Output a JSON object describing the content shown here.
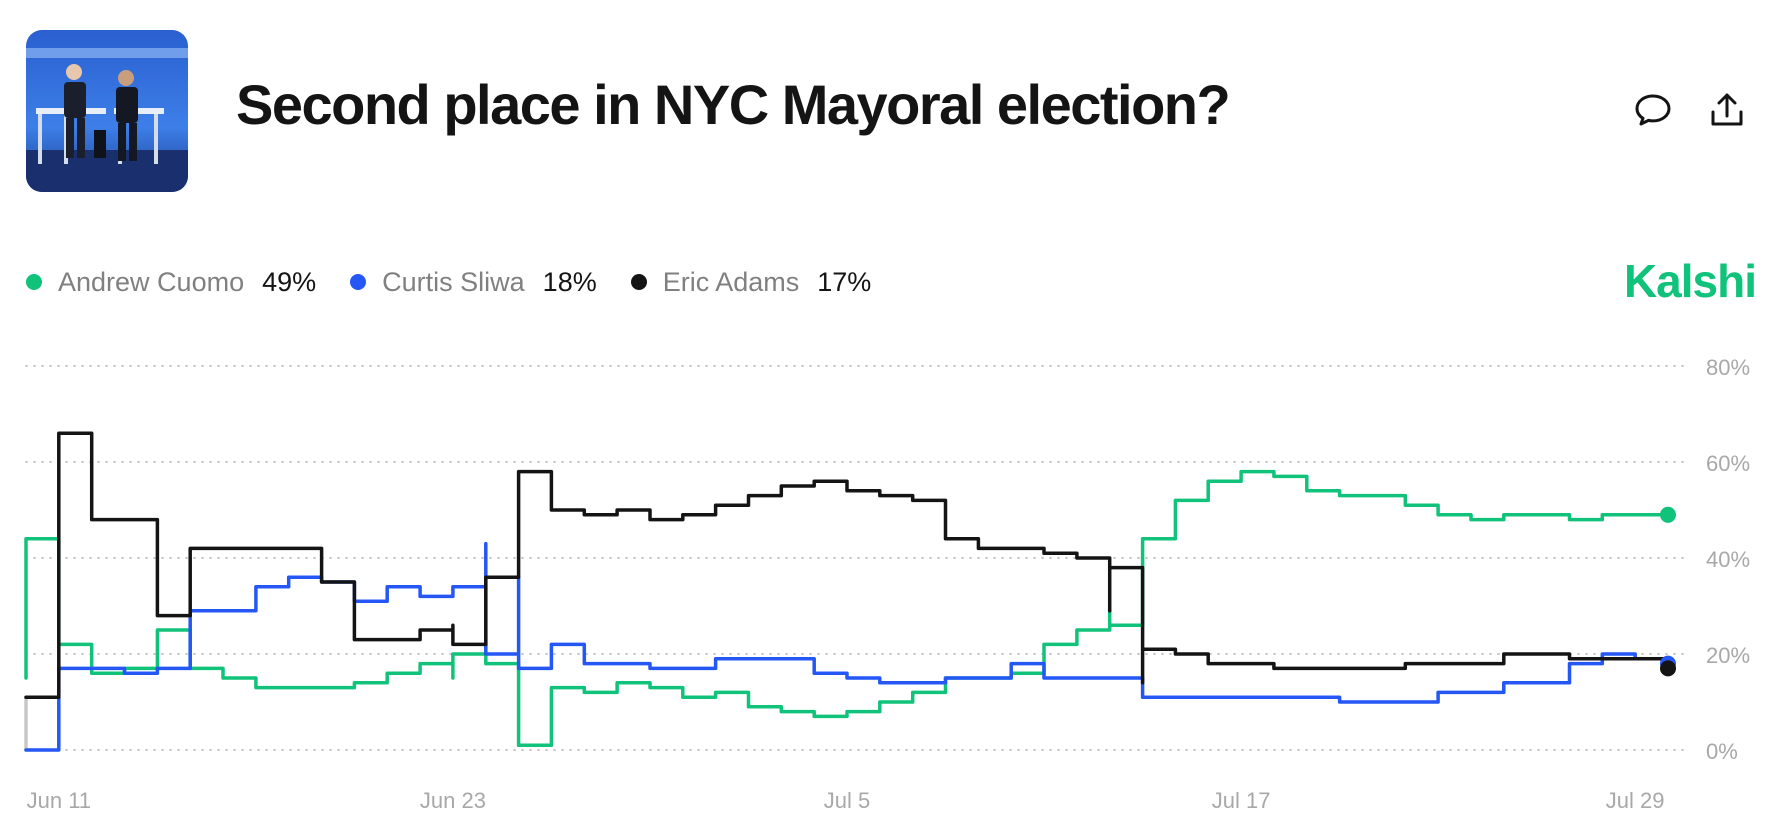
{
  "header": {
    "title": "Second place in NYC Mayoral election?",
    "thumbnail_alt": "debate-stage-photo"
  },
  "actions": {
    "comment_icon": "speech-bubble-icon",
    "share_icon": "share-upload-icon"
  },
  "brand": {
    "name": "Kalshi",
    "color": "#10c27a"
  },
  "legend": [
    {
      "name": "Andrew Cuomo",
      "value": "49%",
      "color": "#10c27a"
    },
    {
      "name": "Curtis Sliwa",
      "value": "18%",
      "color": "#2457f5"
    },
    {
      "name": "Eric Adams",
      "value": "17%",
      "color": "#141414"
    }
  ],
  "chart_data": {
    "type": "line",
    "x_tick_labels": [
      "Jun 11",
      "Jun 23",
      "Jul 5",
      "Jul 17",
      "Jul 29"
    ],
    "x_tick_dates": [
      "2025-06-11",
      "2025-06-23",
      "2025-07-05",
      "2025-07-17",
      "2025-07-29"
    ],
    "x_range": [
      "2025-06-10",
      "2025-07-30"
    ],
    "y_tick_labels": [
      "0%",
      "20%",
      "40%",
      "60%",
      "80%"
    ],
    "ylim": [
      0,
      80
    ],
    "grid": "horizontal dotted",
    "y_axis_side": "right",
    "series": [
      {
        "name": "Andrew Cuomo",
        "color": "#10c27a",
        "points": [
          [
            "2025-06-10",
            15
          ],
          [
            "2025-06-10",
            44
          ],
          [
            "2025-06-11",
            44
          ],
          [
            "2025-06-11",
            28
          ],
          [
            "2025-06-11",
            22
          ],
          [
            "2025-06-12",
            17
          ],
          [
            "2025-06-12",
            16
          ],
          [
            "2025-06-13",
            16
          ],
          [
            "2025-06-13",
            17
          ],
          [
            "2025-06-14",
            17
          ],
          [
            "2025-06-14",
            25
          ],
          [
            "2025-06-15",
            25
          ],
          [
            "2025-06-15",
            17
          ],
          [
            "2025-06-16",
            17
          ],
          [
            "2025-06-16",
            15
          ],
          [
            "2025-06-17",
            15
          ],
          [
            "2025-06-17",
            13
          ],
          [
            "2025-06-19",
            13
          ],
          [
            "2025-06-20",
            14
          ],
          [
            "2025-06-21",
            16
          ],
          [
            "2025-06-22",
            16
          ],
          [
            "2025-06-22",
            18
          ],
          [
            "2025-06-23",
            15
          ],
          [
            "2025-06-23",
            20
          ],
          [
            "2025-06-24",
            23
          ],
          [
            "2025-06-24",
            18
          ],
          [
            "2025-06-25",
            10
          ],
          [
            "2025-06-25",
            1
          ],
          [
            "2025-06-26",
            2
          ],
          [
            "2025-06-26",
            13
          ],
          [
            "2025-06-27",
            12
          ],
          [
            "2025-06-28",
            14
          ],
          [
            "2025-06-29",
            13
          ],
          [
            "2025-06-30",
            11
          ],
          [
            "2025-07-01",
            12
          ],
          [
            "2025-07-02",
            9
          ],
          [
            "2025-07-03",
            8
          ],
          [
            "2025-07-04",
            7
          ],
          [
            "2025-07-05",
            8
          ],
          [
            "2025-07-06",
            10
          ],
          [
            "2025-07-07",
            12
          ],
          [
            "2025-07-08",
            15
          ],
          [
            "2025-07-09",
            15
          ],
          [
            "2025-07-10",
            16
          ],
          [
            "2025-07-11",
            22
          ],
          [
            "2025-07-12",
            25
          ],
          [
            "2025-07-13",
            29
          ],
          [
            "2025-07-13",
            26
          ],
          [
            "2025-07-14",
            44
          ],
          [
            "2025-07-15",
            52
          ],
          [
            "2025-07-16",
            56
          ],
          [
            "2025-07-17",
            58
          ],
          [
            "2025-07-18",
            57
          ],
          [
            "2025-07-19",
            54
          ],
          [
            "2025-07-20",
            53
          ],
          [
            "2025-07-21",
            53
          ],
          [
            "2025-07-22",
            51
          ],
          [
            "2025-07-23",
            49
          ],
          [
            "2025-07-24",
            48
          ],
          [
            "2025-07-25",
            49
          ],
          [
            "2025-07-26",
            49
          ],
          [
            "2025-07-27",
            48
          ],
          [
            "2025-07-28",
            49
          ],
          [
            "2025-07-29",
            49
          ],
          [
            "2025-07-30",
            49
          ]
        ]
      },
      {
        "name": "Curtis Sliwa",
        "color": "#2457f5",
        "points": [
          [
            "2025-06-10",
            0
          ],
          [
            "2025-06-11",
            0
          ],
          [
            "2025-06-11",
            17
          ],
          [
            "2025-06-12",
            17
          ],
          [
            "2025-06-13",
            16
          ],
          [
            "2025-06-14",
            17
          ],
          [
            "2025-06-15",
            17
          ],
          [
            "2025-06-15",
            29
          ],
          [
            "2025-06-17",
            29
          ],
          [
            "2025-06-17",
            34
          ],
          [
            "2025-06-18",
            36
          ],
          [
            "2025-06-19",
            35
          ],
          [
            "2025-06-20",
            35
          ],
          [
            "2025-06-20",
            31
          ],
          [
            "2025-06-21",
            34
          ],
          [
            "2025-06-22",
            32
          ],
          [
            "2025-06-23",
            34
          ],
          [
            "2025-06-24",
            36
          ],
          [
            "2025-06-24",
            43
          ],
          [
            "2025-06-24",
            20
          ],
          [
            "2025-06-25",
            36
          ],
          [
            "2025-06-25",
            17
          ],
          [
            "2025-06-26",
            22
          ],
          [
            "2025-06-27",
            18
          ],
          [
            "2025-06-29",
            17
          ],
          [
            "2025-07-01",
            19
          ],
          [
            "2025-07-03",
            19
          ],
          [
            "2025-07-04",
            16
          ],
          [
            "2025-07-05",
            15
          ],
          [
            "2025-07-06",
            14
          ],
          [
            "2025-07-08",
            15
          ],
          [
            "2025-07-10",
            18
          ],
          [
            "2025-07-11",
            15
          ],
          [
            "2025-07-13",
            15
          ],
          [
            "2025-07-14",
            11
          ],
          [
            "2025-07-16",
            11
          ],
          [
            "2025-07-18",
            11
          ],
          [
            "2025-07-20",
            10
          ],
          [
            "2025-07-22",
            10
          ],
          [
            "2025-07-23",
            12
          ],
          [
            "2025-07-25",
            14
          ],
          [
            "2025-07-27",
            18
          ],
          [
            "2025-07-28",
            20
          ],
          [
            "2025-07-29",
            19
          ],
          [
            "2025-07-30",
            18
          ]
        ]
      },
      {
        "name": "Eric Adams",
        "color": "#141414",
        "points": [
          [
            "2025-06-10",
            11
          ],
          [
            "2025-06-11",
            11
          ],
          [
            "2025-06-11",
            66
          ],
          [
            "2025-06-12",
            66
          ],
          [
            "2025-06-12",
            48
          ],
          [
            "2025-06-13",
            48
          ],
          [
            "2025-06-14",
            41
          ],
          [
            "2025-06-14",
            28
          ],
          [
            "2025-06-15",
            28
          ],
          [
            "2025-06-15",
            42
          ],
          [
            "2025-06-19",
            42
          ],
          [
            "2025-06-19",
            35
          ],
          [
            "2025-06-20",
            29
          ],
          [
            "2025-06-20",
            23
          ],
          [
            "2025-06-21",
            23
          ],
          [
            "2025-06-22",
            25
          ],
          [
            "2025-06-23",
            26
          ],
          [
            "2025-06-23",
            22
          ],
          [
            "2025-06-24",
            30
          ],
          [
            "2025-06-24",
            36
          ],
          [
            "2025-06-25",
            48
          ],
          [
            "2025-06-25",
            58
          ],
          [
            "2025-06-26",
            56
          ],
          [
            "2025-06-26",
            50
          ],
          [
            "2025-06-27",
            49
          ],
          [
            "2025-06-28",
            50
          ],
          [
            "2025-06-29",
            48
          ],
          [
            "2025-06-30",
            49
          ],
          [
            "2025-07-01",
            51
          ],
          [
            "2025-07-02",
            53
          ],
          [
            "2025-07-03",
            55
          ],
          [
            "2025-07-04",
            56
          ],
          [
            "2025-07-05",
            54
          ],
          [
            "2025-07-06",
            53
          ],
          [
            "2025-07-07",
            52
          ],
          [
            "2025-07-08",
            50
          ],
          [
            "2025-07-08",
            44
          ],
          [
            "2025-07-09",
            42
          ],
          [
            "2025-07-10",
            42
          ],
          [
            "2025-07-11",
            41
          ],
          [
            "2025-07-12",
            40
          ],
          [
            "2025-07-13",
            29
          ],
          [
            "2025-07-13",
            38
          ],
          [
            "2025-07-14",
            14
          ],
          [
            "2025-07-14",
            21
          ],
          [
            "2025-07-15",
            20
          ],
          [
            "2025-07-16",
            18
          ],
          [
            "2025-07-17",
            18
          ],
          [
            "2025-07-18",
            17
          ],
          [
            "2025-07-20",
            17
          ],
          [
            "2025-07-22",
            18
          ],
          [
            "2025-07-24",
            18
          ],
          [
            "2025-07-25",
            20
          ],
          [
            "2025-07-27",
            19
          ],
          [
            "2025-07-29",
            19
          ],
          [
            "2025-07-30",
            17
          ]
        ]
      },
      {
        "name": "",
        "color": "#c8c8c8",
        "points": [
          [
            "2025-06-10",
            0
          ],
          [
            "2025-06-10",
            11
          ],
          [
            "2025-06-11",
            11
          ]
        ]
      }
    ]
  }
}
